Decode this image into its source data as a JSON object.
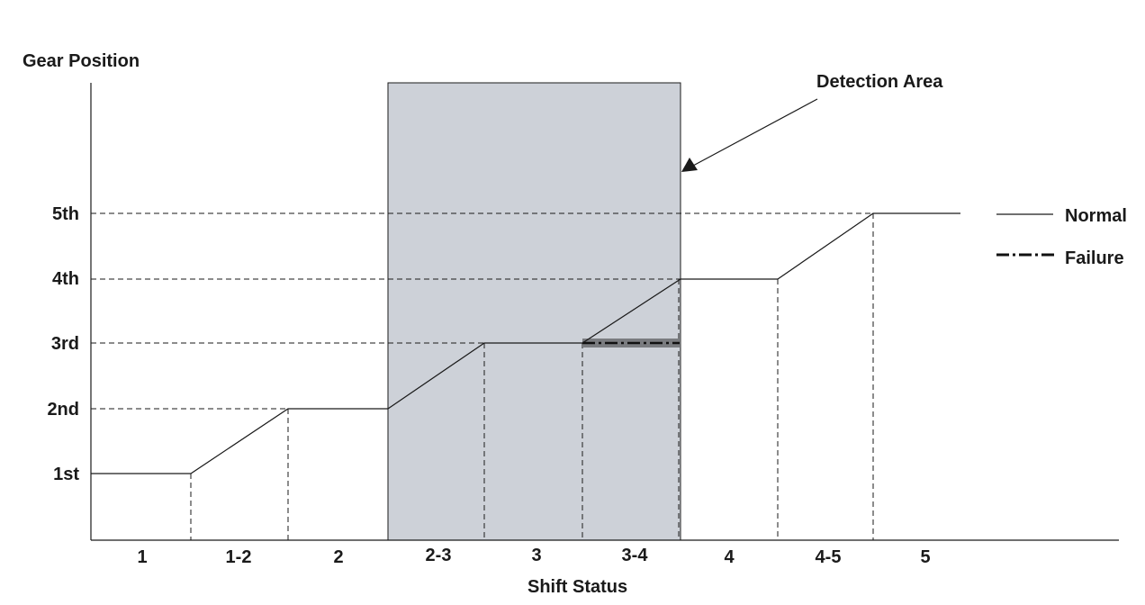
{
  "y_axis_title": "Gear Position",
  "x_axis_title": "Shift Status",
  "y_ticks": [
    "1st",
    "2nd",
    "3rd",
    "4th",
    "5th"
  ],
  "x_ticks": [
    "1",
    "1-2",
    "2",
    "2-3",
    "3",
    "3-4",
    "4",
    "4-5",
    "5"
  ],
  "annotation": "Detection Area",
  "legend": {
    "normal": "Normal",
    "failure": "Failure"
  },
  "colors": {
    "line": "#1a1a1a",
    "detection_area": "#cdd1d8",
    "failure_band": "#7a7c80"
  }
}
